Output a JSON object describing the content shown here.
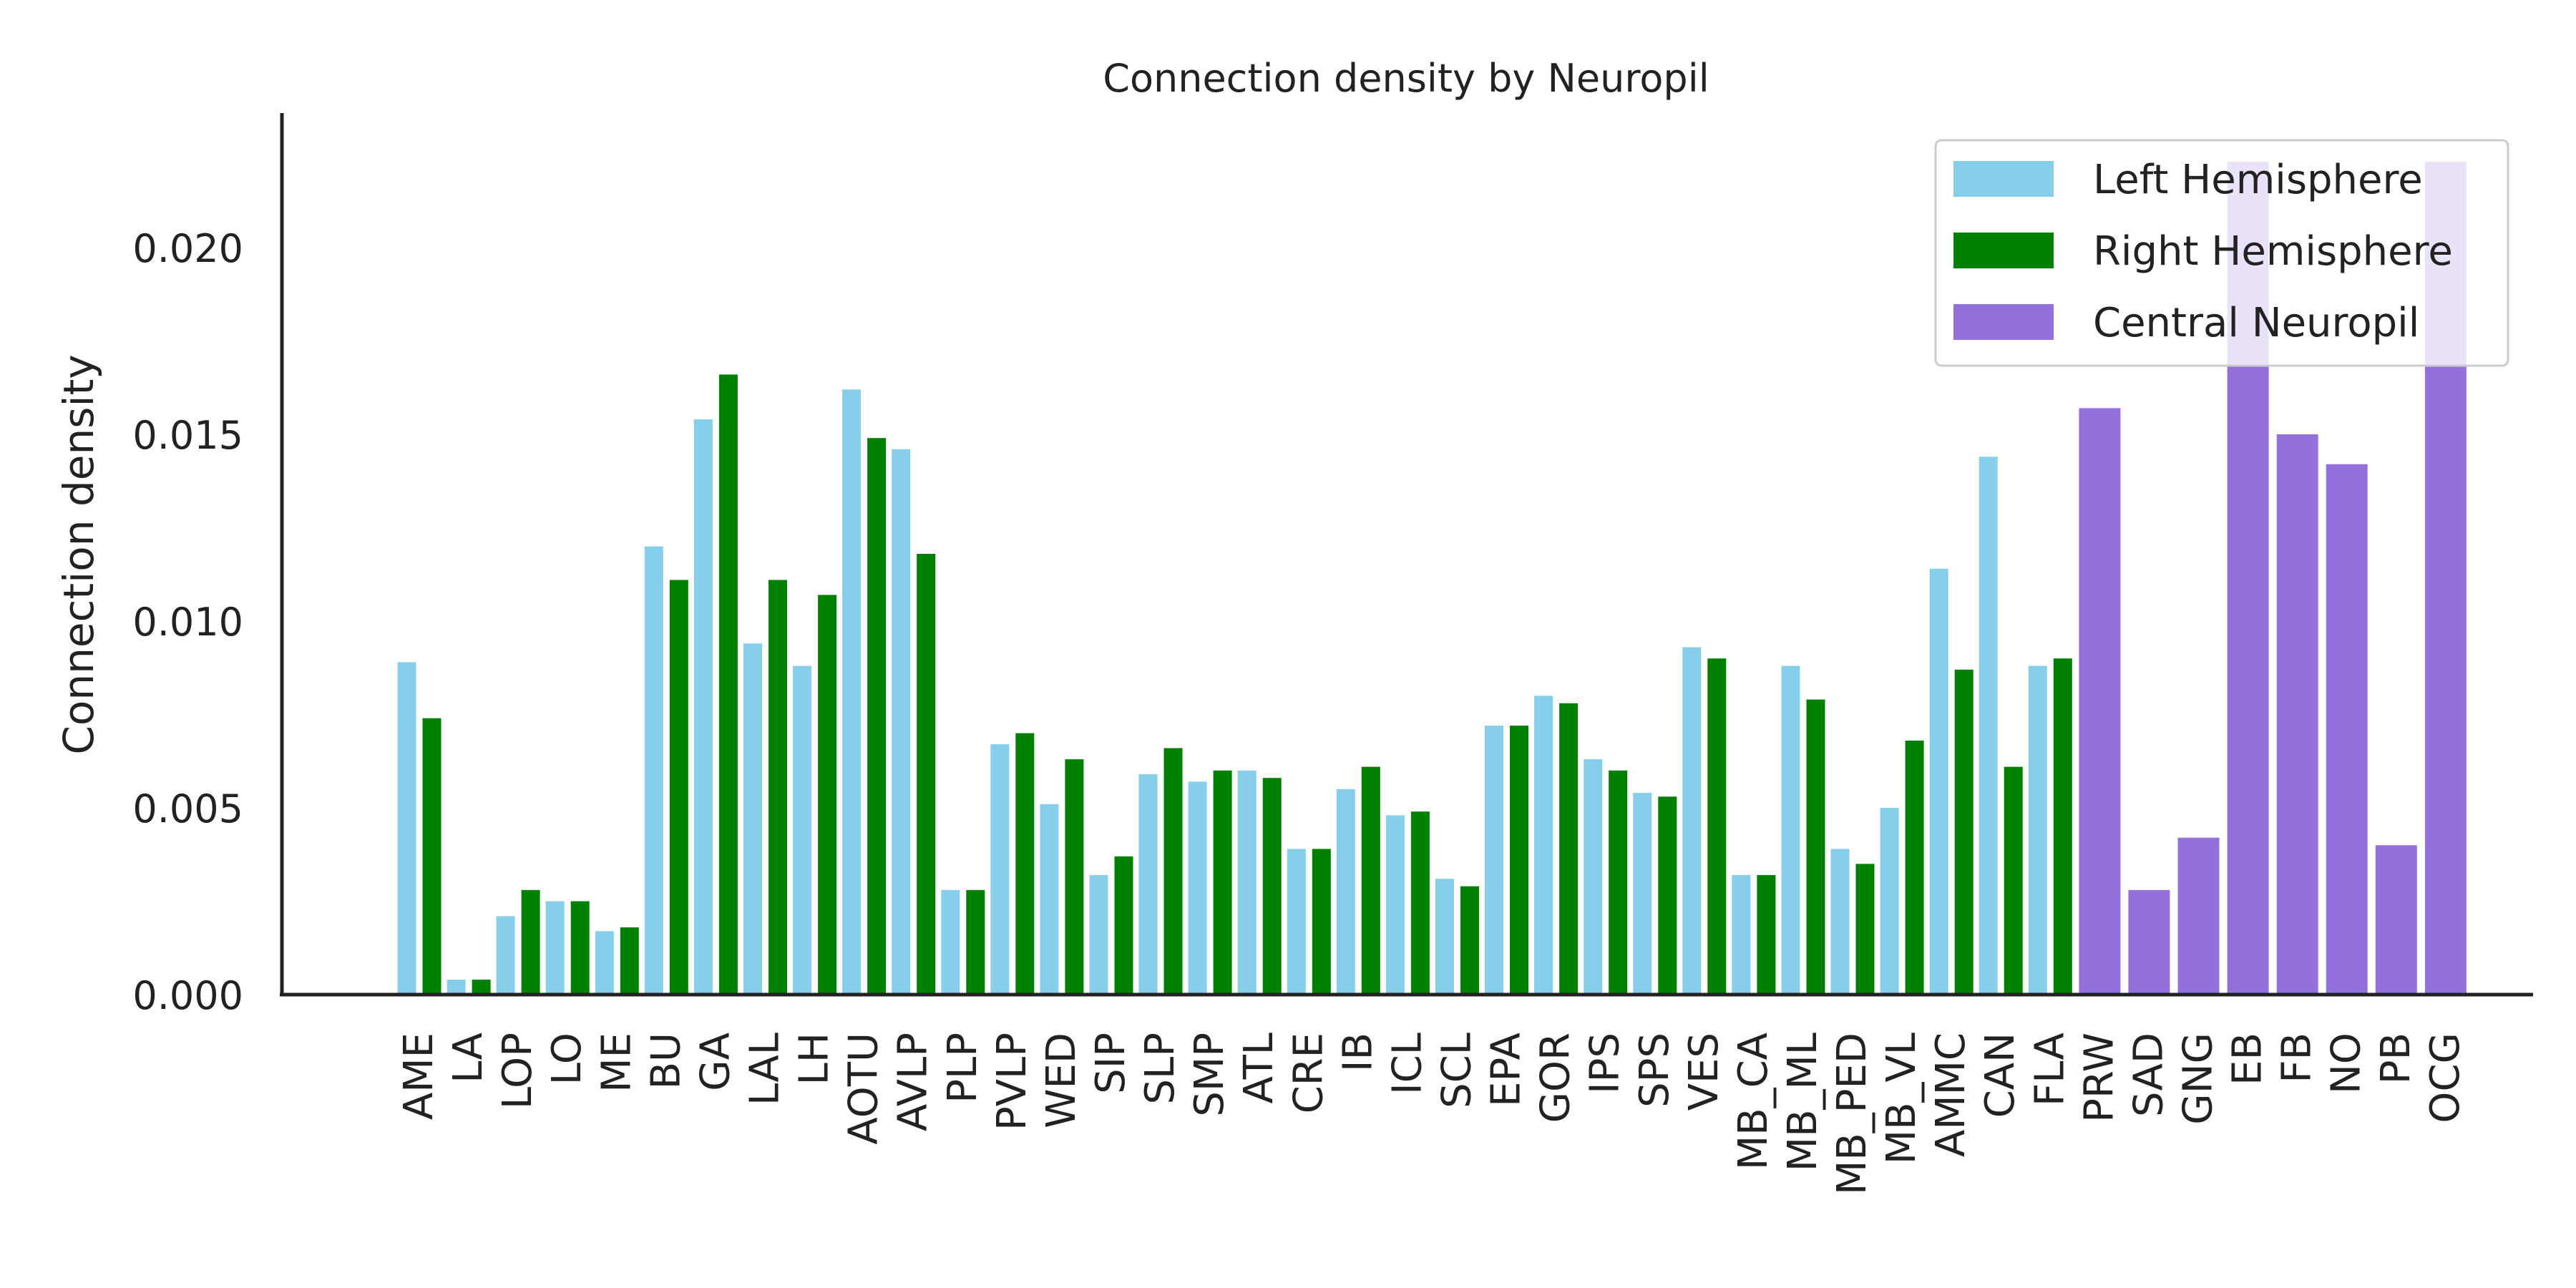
{
  "chart_data": {
    "type": "bar",
    "title": "Connection density by Neuropil",
    "xlabel": "",
    "ylabel": "Connection density",
    "ylim": [
      0,
      0.0236
    ],
    "yticks": [
      "0.000",
      "0.005",
      "0.010",
      "0.015",
      "0.020"
    ],
    "ytick_values": [
      0.0,
      0.005,
      0.01,
      0.015,
      0.02
    ],
    "grid": false,
    "legend_position": "top-right",
    "categories": [
      "AME",
      "LA",
      "LOP",
      "LO",
      "ME",
      "BU",
      "GA",
      "LAL",
      "LH",
      "AOTU",
      "AVLP",
      "PLP",
      "PVLP",
      "WED",
      "SIP",
      "SLP",
      "SMP",
      "ATL",
      "CRE",
      "IB",
      "ICL",
      "SCL",
      "EPA",
      "GOR",
      "IPS",
      "SPS",
      "VES",
      "MB_CA",
      "MB_ML",
      "MB_PED",
      "MB_VL",
      "AMMC",
      "CAN",
      "FLA",
      "PRW",
      "SAD",
      "GNG",
      "EB",
      "FB",
      "NO",
      "PB",
      "OCG"
    ],
    "series": [
      {
        "name": "Left Hemisphere",
        "color": "#87CEEB",
        "values": [
          0.0089,
          0.0004,
          0.0021,
          0.0025,
          0.0017,
          0.012,
          0.0154,
          0.0094,
          0.0088,
          0.0162,
          0.0146,
          0.0028,
          0.0067,
          0.0051,
          0.0032,
          0.0059,
          0.0057,
          0.006,
          0.0039,
          0.0055,
          0.0048,
          0.0031,
          0.0072,
          0.008,
          0.0063,
          0.0054,
          0.0093,
          0.0032,
          0.0088,
          0.0039,
          0.005,
          0.0114,
          0.0144,
          0.0088,
          null,
          null,
          null,
          null,
          null,
          null,
          null,
          null
        ]
      },
      {
        "name": "Right Hemisphere",
        "color": "#008000",
        "values": [
          0.0074,
          0.0004,
          0.0028,
          0.0025,
          0.0018,
          0.0111,
          0.0166,
          0.0111,
          0.0107,
          0.0149,
          0.0118,
          0.0028,
          0.007,
          0.0063,
          0.0037,
          0.0066,
          0.006,
          0.0058,
          0.0039,
          0.0061,
          0.0049,
          0.0029,
          0.0072,
          0.0078,
          0.006,
          0.0053,
          0.009,
          0.0032,
          0.0079,
          0.0035,
          0.0068,
          0.0087,
          0.0061,
          0.009,
          null,
          null,
          null,
          null,
          null,
          null,
          null,
          null
        ]
      },
      {
        "name": "Central Neuropil",
        "color": "#9370DB",
        "values": [
          null,
          null,
          null,
          null,
          null,
          null,
          null,
          null,
          null,
          null,
          null,
          null,
          null,
          null,
          null,
          null,
          null,
          null,
          null,
          null,
          null,
          null,
          null,
          null,
          null,
          null,
          null,
          null,
          null,
          null,
          null,
          null,
          null,
          null,
          0.0157,
          0.0028,
          0.0042,
          0.0223,
          0.015,
          0.0142,
          0.004,
          0.0223
        ]
      }
    ]
  }
}
